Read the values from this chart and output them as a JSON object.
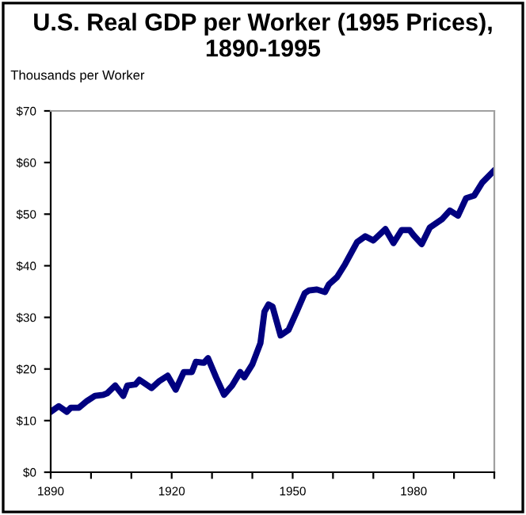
{
  "chart_data": {
    "type": "line",
    "title": "U.S. Real GDP per Worker (1995 Prices), 1890-1995",
    "ylabel": "Thousands per Worker",
    "x": [
      1890,
      1892,
      1894,
      1895,
      1897,
      1899,
      1901,
      1903,
      1904,
      1906,
      1908,
      1909,
      1911,
      1912,
      1915,
      1917,
      1919,
      1921,
      1923,
      1925,
      1926,
      1928,
      1929,
      1931,
      1933,
      1935,
      1937,
      1938,
      1940,
      1942,
      1943,
      1944,
      1945,
      1947,
      1949,
      1951,
      1953,
      1954,
      1956,
      1958,
      1959,
      1961,
      1963,
      1966,
      1968,
      1970,
      1973,
      1975,
      1977,
      1979,
      1980,
      1982,
      1984,
      1987,
      1989,
      1991,
      1993,
      1995,
      1997,
      2000
    ],
    "series": [
      {
        "color": "#000080",
        "values": [
          11.7,
          12.8,
          11.7,
          12.5,
          12.5,
          13.8,
          14.8,
          15.0,
          15.3,
          16.8,
          14.8,
          16.8,
          17.0,
          17.9,
          16.3,
          17.7,
          18.7,
          16.0,
          19.4,
          19.4,
          21.4,
          21.2,
          22.1,
          18.4,
          15.0,
          16.8,
          19.4,
          18.4,
          20.9,
          25.0,
          31.1,
          32.5,
          32.1,
          26.5,
          27.6,
          31.1,
          34.7,
          35.2,
          35.4,
          34.9,
          36.4,
          37.8,
          40.3,
          44.6,
          45.7,
          44.9,
          47.1,
          44.4,
          46.9,
          46.9,
          45.9,
          44.2,
          47.4,
          49.0,
          50.7,
          49.7,
          53.1,
          53.6,
          56.1,
          58.5
        ]
      }
    ],
    "xlim": [
      1890,
      2000
    ],
    "xticks": [
      1890,
      {
        "value": 1900,
        "label": null
      },
      {
        "value": 1910,
        "label": null
      },
      1920,
      {
        "value": 1930,
        "label": null
      },
      {
        "value": 1940,
        "label": null
      },
      1950,
      {
        "value": 1960,
        "label": null
      },
      {
        "value": 1970,
        "label": null
      },
      1980,
      {
        "value": 1990,
        "label": null
      },
      {
        "value": 2000,
        "label": null
      }
    ],
    "ylim": [
      0,
      70
    ],
    "yticks": [
      {
        "value": 0,
        "label": "$0"
      },
      {
        "value": 10,
        "label": "$10"
      },
      {
        "value": 20,
        "label": "$20"
      },
      {
        "value": 30,
        "label": "$30"
      },
      {
        "value": 40,
        "label": "$40"
      },
      {
        "value": 50,
        "label": "$50"
      },
      {
        "value": 60,
        "label": "$60"
      },
      {
        "value": 70,
        "label": "$70"
      }
    ],
    "grid": false,
    "legend": false
  }
}
